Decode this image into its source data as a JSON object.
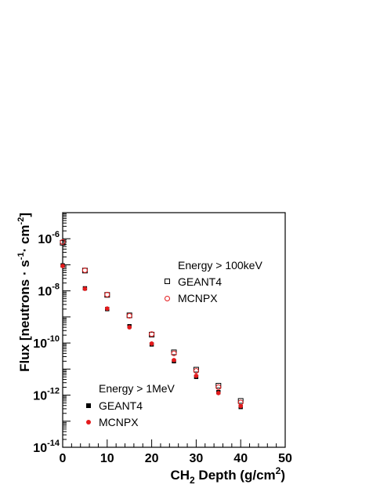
{
  "chart_data": {
    "type": "scatter",
    "title": "",
    "xlabel": {
      "pre": "CH",
      "sub": "2",
      "mid": " Depth (g/cm",
      "sup": "2",
      "post": ")"
    },
    "ylabel": {
      "pre": "Flux [neutrons · s",
      "sup1": "-1",
      "mid": "· cm",
      "sup2": "-2",
      "post": "]"
    },
    "xlim": [
      0,
      50
    ],
    "ylim": [
      1e-14,
      1e-05
    ],
    "yscale": "log",
    "grid": false,
    "x_ticks": [
      "0",
      "10",
      "20",
      "30",
      "40",
      "50"
    ],
    "y_ticks": [
      {
        "base": "10",
        "exp": "-6",
        "value": 1e-06
      },
      {
        "base": "10",
        "exp": "-8",
        "value": 1e-08
      },
      {
        "base": "10",
        "exp": "-10",
        "value": 1e-10
      },
      {
        "base": "10",
        "exp": "-12",
        "value": 1e-12
      },
      {
        "base": "10",
        "exp": "-14",
        "value": 1e-14
      }
    ],
    "legend_groups": [
      {
        "heading": "Energy > 100keV",
        "placement": "upper-right"
      },
      {
        "heading": "Energy > 1MeV",
        "placement": "lower-left"
      }
    ],
    "x": [
      0,
      5,
      10,
      15,
      20,
      25,
      30,
      35,
      40
    ],
    "series": [
      {
        "name": "GEANT4",
        "group": 0,
        "marker": "open-square",
        "color": "#000000",
        "values": [
          7e-07,
          6e-08,
          7e-09,
          1.15e-09,
          2.1e-10,
          4.4e-11,
          9.5e-12,
          2.3e-12,
          6e-13
        ]
      },
      {
        "name": "MCNPX",
        "group": 0,
        "marker": "open-circle",
        "color": "#e41a1c",
        "values": [
          7.5e-07,
          6.2e-08,
          7.2e-09,
          1.1e-09,
          2.2e-10,
          4e-11,
          8.5e-12,
          2e-12,
          5.2e-13
        ]
      },
      {
        "name": "GEANT4",
        "group": 1,
        "marker": "filled-square",
        "color": "#000000",
        "values": [
          9.5e-08,
          1.25e-08,
          2e-09,
          4.4e-10,
          8.8e-11,
          2e-11,
          5e-12,
          1.3e-12,
          3.5e-13
        ]
      },
      {
        "name": "MCNPX",
        "group": 1,
        "marker": "filled-circle",
        "color": "#e41a1c",
        "values": [
          9e-08,
          1.2e-08,
          2.1e-09,
          4e-10,
          9.5e-11,
          2.2e-11,
          5.5e-12,
          1.2e-12,
          3.8e-13
        ]
      }
    ]
  }
}
